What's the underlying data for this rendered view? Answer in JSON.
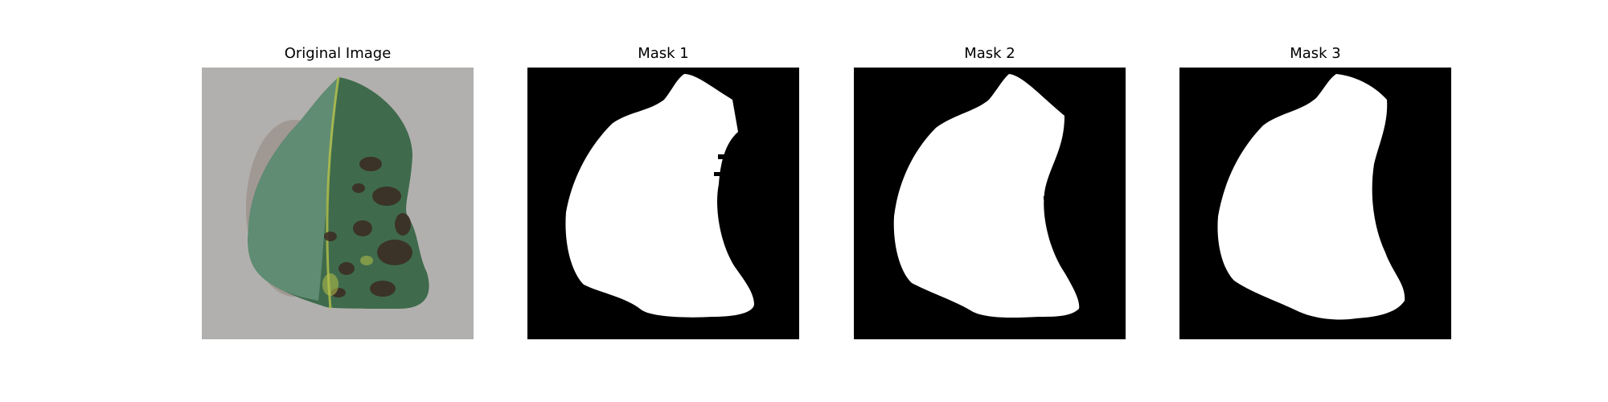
{
  "panels": [
    {
      "title": "Original Image",
      "kind": "photo"
    },
    {
      "title": "Mask 1",
      "kind": "mask"
    },
    {
      "title": "Mask 2",
      "kind": "mask"
    },
    {
      "title": "Mask 3",
      "kind": "mask"
    }
  ],
  "colors": {
    "mask_background": "#000000",
    "mask_foreground": "#ffffff",
    "photo_background": "#bdbbb9",
    "leaf_light": "#5f8c72",
    "leaf_dark": "#2f4f33",
    "lesion": "#3b2a22",
    "vein": "#b7c24a"
  }
}
